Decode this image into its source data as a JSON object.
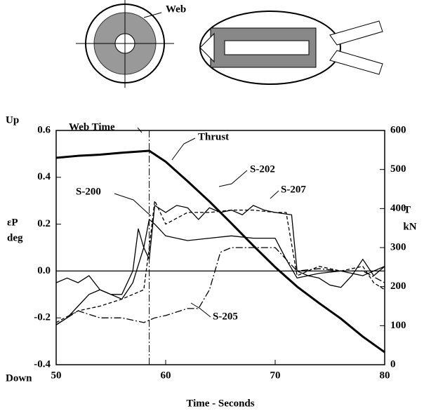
{
  "chart_data": {
    "type": "line",
    "diagram_label": "Web",
    "xlabel": "Time - Seconds",
    "ylabel": "εP",
    "ylabel_unit": "deg",
    "y_top_label": "Up",
    "y_bottom_label": "Down",
    "y2label": "T",
    "y2label_unit": "kN",
    "annotation": {
      "text": "Web Time",
      "x": 58.5
    },
    "xlim": [
      50,
      80
    ],
    "xticks": [
      50,
      60,
      70,
      80
    ],
    "ylim": [
      -0.4,
      0.6
    ],
    "yticks": [
      -0.4,
      -0.2,
      {
        "value": 0,
        "label": "0.0"
      },
      0.2,
      0.4,
      0.6
    ],
    "y2lim": [
      0,
      600
    ],
    "y2ticks": [
      0,
      100,
      200,
      300,
      400,
      500,
      600
    ],
    "zero_line": true,
    "series": [
      {
        "name": "Thrust",
        "color": "#000000",
        "style": "solid",
        "width": 3,
        "axis": "y2",
        "x": [
          50,
          52,
          54,
          56,
          58.5,
          60,
          62,
          64,
          66,
          68,
          70,
          72,
          74,
          76,
          78,
          80
        ],
        "values": [
          530,
          535,
          538,
          543,
          548,
          520,
          470,
          418,
          362,
          305,
          250,
          200,
          158,
          118,
          72,
          32
        ]
      },
      {
        "name": "S-202",
        "color": "#000000",
        "style": "solid",
        "width": 1.3,
        "x": [
          50,
          51,
          52,
          53,
          54,
          55,
          56,
          57,
          58,
          58.5,
          59,
          60,
          61,
          62,
          63,
          64,
          65,
          66,
          67,
          68,
          69,
          70,
          71.5,
          72,
          73,
          74,
          75,
          76,
          77,
          78,
          79,
          80
        ],
        "values": [
          -0.23,
          -0.2,
          -0.15,
          -0.1,
          -0.08,
          -0.1,
          -0.12,
          -0.05,
          0.1,
          0.05,
          0.28,
          0.25,
          0.28,
          0.27,
          0.22,
          0.27,
          0.25,
          0.26,
          0.24,
          0.28,
          0.26,
          0.25,
          0.24,
          0.0,
          -0.02,
          -0.03,
          -0.06,
          -0.07,
          -0.02,
          0.05,
          -0.02,
          0.02
        ]
      },
      {
        "name": "S-207",
        "color": "#000000",
        "style": "dashed",
        "width": 1.3,
        "x": [
          50,
          52,
          54,
          56,
          57,
          58,
          58.5,
          59,
          60,
          62,
          64,
          66,
          68,
          70,
          71,
          72,
          73,
          74,
          76,
          78,
          79,
          80
        ],
        "values": [
          -0.22,
          -0.17,
          -0.15,
          -0.12,
          -0.1,
          -0.08,
          0.1,
          0.3,
          0.2,
          0.25,
          0.25,
          0.26,
          0.26,
          0.25,
          0.25,
          -0.02,
          0.0,
          0.02,
          0.0,
          0.02,
          -0.05,
          -0.08
        ]
      },
      {
        "name": "S-200",
        "color": "#000000",
        "style": "solid",
        "width": 1.3,
        "x": [
          50,
          51,
          52,
          53,
          54,
          55,
          56,
          57,
          57.5,
          58,
          58.5,
          59,
          60,
          62,
          64,
          66,
          68,
          70,
          71,
          72,
          74,
          76,
          78,
          80
        ],
        "values": [
          -0.05,
          -0.03,
          -0.05,
          -0.02,
          -0.08,
          -0.1,
          -0.1,
          0.0,
          0.18,
          0.1,
          0.22,
          0.2,
          0.15,
          0.13,
          0.14,
          0.15,
          0.14,
          0.14,
          0.05,
          -0.03,
          -0.01,
          0.0,
          -0.02,
          0.02
        ]
      },
      {
        "name": "S-205",
        "color": "#000000",
        "style": "dashdot",
        "width": 1.3,
        "x": [
          50,
          52,
          54,
          56,
          58,
          59,
          60,
          62,
          63,
          64,
          65,
          66,
          68,
          70,
          72,
          74,
          76,
          78,
          80
        ],
        "values": [
          -0.23,
          -0.17,
          -0.2,
          -0.2,
          -0.22,
          -0.2,
          -0.19,
          -0.16,
          -0.16,
          -0.08,
          0.08,
          0.1,
          0.1,
          0.1,
          0.0,
          0.01,
          0.0,
          0.0,
          -0.05
        ]
      }
    ]
  }
}
